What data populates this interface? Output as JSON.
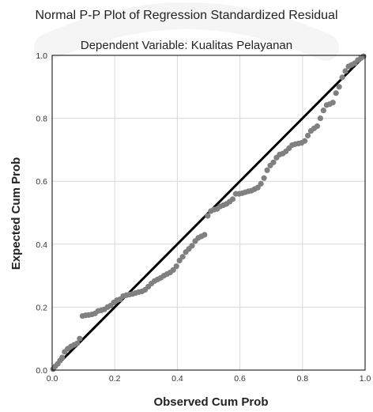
{
  "colors": {
    "background": "#ffffff",
    "plot_border": "#000000",
    "grid": "#d9d9d9",
    "points": "#808080",
    "reference_line": "#000000",
    "watermark": "#e9e9e9"
  },
  "chart_data": {
    "type": "scatter",
    "title": "Normal P-P Plot of Regression Standardized Residual",
    "subtitle": "Dependent Variable: Kualitas Pelayanan",
    "xlabel": "Observed Cum Prob",
    "ylabel": "Expected Cum Prob",
    "xlim": [
      0,
      1
    ],
    "ylim": [
      0,
      1
    ],
    "xticks": [
      "0.0",
      "0.2",
      "0.4",
      "0.6",
      "0.8",
      "1.0"
    ],
    "yticks": [
      "0.0",
      "0.2",
      "0.4",
      "0.6",
      "0.8",
      "1.0"
    ],
    "grid": true,
    "reference_line": {
      "from": [
        0,
        0
      ],
      "to": [
        1,
        1
      ]
    },
    "points": [
      [
        0.003,
        0.003
      ],
      [
        0.01,
        0.012
      ],
      [
        0.018,
        0.02
      ],
      [
        0.025,
        0.03
      ],
      [
        0.032,
        0.04
      ],
      [
        0.04,
        0.058
      ],
      [
        0.05,
        0.068
      ],
      [
        0.06,
        0.075
      ],
      [
        0.07,
        0.08
      ],
      [
        0.08,
        0.085
      ],
      [
        0.088,
        0.1
      ],
      [
        0.097,
        0.172
      ],
      [
        0.107,
        0.174
      ],
      [
        0.117,
        0.175
      ],
      [
        0.127,
        0.177
      ],
      [
        0.137,
        0.18
      ],
      [
        0.147,
        0.188
      ],
      [
        0.157,
        0.19
      ],
      [
        0.167,
        0.193
      ],
      [
        0.177,
        0.2
      ],
      [
        0.187,
        0.205
      ],
      [
        0.197,
        0.215
      ],
      [
        0.207,
        0.222
      ],
      [
        0.217,
        0.225
      ],
      [
        0.227,
        0.235
      ],
      [
        0.237,
        0.238
      ],
      [
        0.247,
        0.24
      ],
      [
        0.257,
        0.242
      ],
      [
        0.267,
        0.245
      ],
      [
        0.277,
        0.248
      ],
      [
        0.287,
        0.25
      ],
      [
        0.297,
        0.255
      ],
      [
        0.307,
        0.265
      ],
      [
        0.317,
        0.275
      ],
      [
        0.327,
        0.283
      ],
      [
        0.337,
        0.288
      ],
      [
        0.347,
        0.293
      ],
      [
        0.357,
        0.3
      ],
      [
        0.367,
        0.305
      ],
      [
        0.377,
        0.31
      ],
      [
        0.387,
        0.318
      ],
      [
        0.397,
        0.33
      ],
      [
        0.407,
        0.348
      ],
      [
        0.417,
        0.36
      ],
      [
        0.427,
        0.375
      ],
      [
        0.437,
        0.385
      ],
      [
        0.447,
        0.395
      ],
      [
        0.457,
        0.41
      ],
      [
        0.467,
        0.42
      ],
      [
        0.477,
        0.425
      ],
      [
        0.487,
        0.43
      ],
      [
        0.497,
        0.49
      ],
      [
        0.507,
        0.505
      ],
      [
        0.517,
        0.51
      ],
      [
        0.527,
        0.512
      ],
      [
        0.537,
        0.52
      ],
      [
        0.547,
        0.524
      ],
      [
        0.557,
        0.528
      ],
      [
        0.567,
        0.535
      ],
      [
        0.577,
        0.543
      ],
      [
        0.587,
        0.56
      ],
      [
        0.597,
        0.56
      ],
      [
        0.607,
        0.562
      ],
      [
        0.617,
        0.565
      ],
      [
        0.627,
        0.568
      ],
      [
        0.637,
        0.57
      ],
      [
        0.647,
        0.575
      ],
      [
        0.657,
        0.58
      ],
      [
        0.667,
        0.592
      ],
      [
        0.677,
        0.61
      ],
      [
        0.687,
        0.635
      ],
      [
        0.697,
        0.65
      ],
      [
        0.707,
        0.66
      ],
      [
        0.717,
        0.675
      ],
      [
        0.727,
        0.685
      ],
      [
        0.737,
        0.688
      ],
      [
        0.747,
        0.695
      ],
      [
        0.757,
        0.705
      ],
      [
        0.767,
        0.715
      ],
      [
        0.777,
        0.718
      ],
      [
        0.787,
        0.72
      ],
      [
        0.797,
        0.722
      ],
      [
        0.807,
        0.728
      ],
      [
        0.817,
        0.745
      ],
      [
        0.827,
        0.76
      ],
      [
        0.837,
        0.768
      ],
      [
        0.847,
        0.775
      ],
      [
        0.857,
        0.8
      ],
      [
        0.867,
        0.825
      ],
      [
        0.877,
        0.842
      ],
      [
        0.887,
        0.845
      ],
      [
        0.897,
        0.85
      ],
      [
        0.907,
        0.88
      ],
      [
        0.917,
        0.9
      ],
      [
        0.927,
        0.93
      ],
      [
        0.937,
        0.95
      ],
      [
        0.947,
        0.965
      ],
      [
        0.957,
        0.97
      ],
      [
        0.967,
        0.975
      ],
      [
        0.977,
        0.985
      ],
      [
        0.987,
        0.992
      ],
      [
        0.995,
        0.997
      ]
    ]
  }
}
